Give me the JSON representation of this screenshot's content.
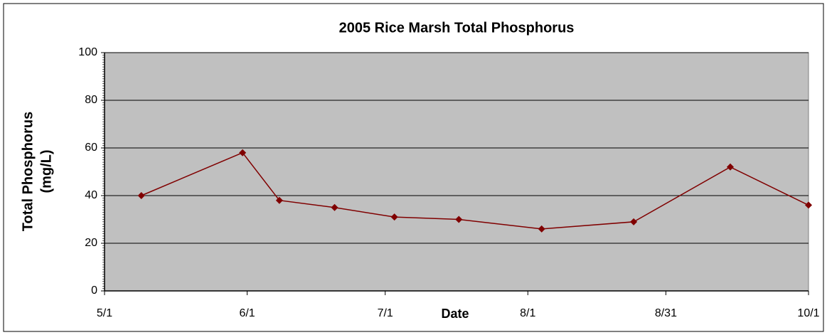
{
  "chart_data": {
    "type": "line",
    "title": "2005 Rice Marsh Total Phosphorus",
    "xlabel": "Date",
    "ylabel": [
      "Total Phosphorus",
      "(mg/L)"
    ],
    "x": [
      "5/9",
      "5/31",
      "6/8",
      "6/20",
      "7/3",
      "7/17",
      "8/4",
      "8/24",
      "9/14",
      "10/1"
    ],
    "series": [
      {
        "name": "Total Phosphorus",
        "color": "#800000",
        "values": [
          40,
          58,
          38,
          35,
          31,
          30,
          26,
          29,
          52,
          36
        ]
      }
    ],
    "xlim": [
      "5/1",
      "10/1"
    ],
    "xticks": [
      "5/1",
      "6/1",
      "7/1",
      "8/1",
      "8/31",
      "10/1"
    ],
    "ylim": [
      0,
      100
    ],
    "yticks": [
      0,
      20,
      40,
      60,
      80,
      100
    ],
    "grid": true,
    "plot_background": "#c0c0c0"
  }
}
